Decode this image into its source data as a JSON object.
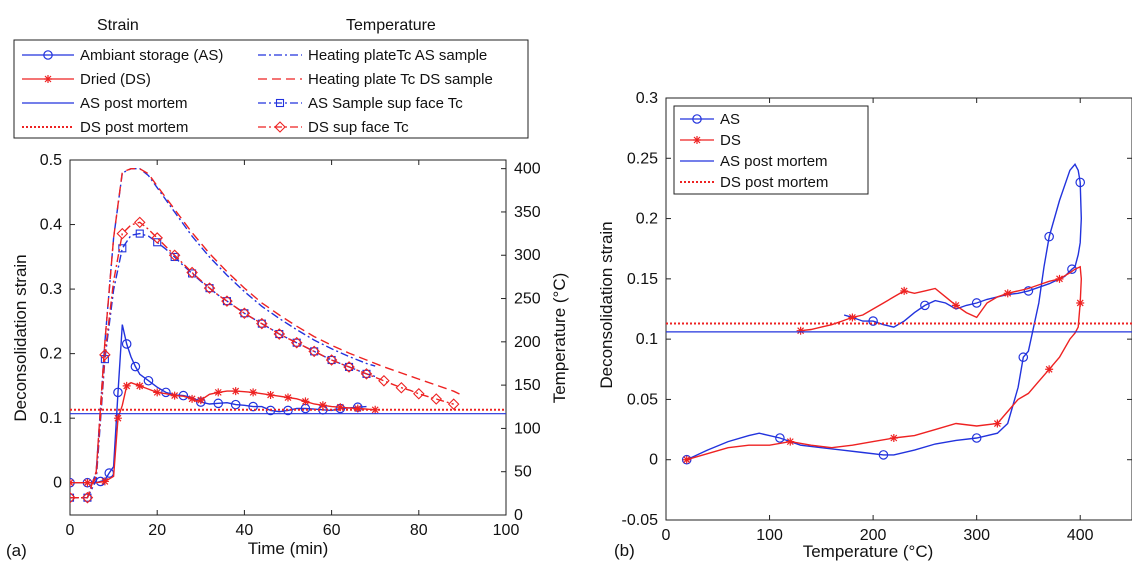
{
  "chart_data": [
    {
      "panel": "(a)",
      "type": "line",
      "header_left": "Strain",
      "header_right": "Temperature",
      "xlabel": "Time (min)",
      "ylabel": "Deconsolidation strain",
      "y2label": "Temperature (°C)",
      "xlim": [
        0,
        100
      ],
      "ylim": [
        -0.05,
        0.5
      ],
      "y2lim": [
        0,
        410
      ],
      "xticks": [
        0,
        20,
        40,
        60,
        80,
        100
      ],
      "yticks": [
        0,
        0.1,
        0.2,
        0.3,
        0.4,
        0.5
      ],
      "y2ticks": [
        0,
        50,
        100,
        150,
        200,
        250,
        300,
        350,
        400
      ],
      "legend_placement": "above",
      "series": [
        {
          "name": "Ambiant storage (AS)",
          "color": "#2233dd",
          "style": "solid",
          "marker": "circle",
          "axis": "left",
          "x": [
            0,
            2,
            4,
            6,
            7,
            8,
            9,
            10,
            11,
            12,
            13,
            14,
            15,
            16,
            18,
            20,
            22,
            24,
            26,
            28,
            30,
            32,
            34,
            36,
            38,
            40,
            42,
            44,
            46,
            48,
            50,
            52,
            54,
            56,
            58,
            60,
            62,
            64,
            66,
            68
          ],
          "y": [
            0,
            0,
            0,
            0,
            0.002,
            0.004,
            0.015,
            0.025,
            0.14,
            0.245,
            0.215,
            0.195,
            0.18,
            0.168,
            0.158,
            0.148,
            0.14,
            0.136,
            0.135,
            0.132,
            0.125,
            0.122,
            0.123,
            0.124,
            0.121,
            0.12,
            0.118,
            0.118,
            0.112,
            0.11,
            0.112,
            0.115,
            0.115,
            0.114,
            0.113,
            0.112,
            0.115,
            0.116,
            0.117,
            0.118
          ]
        },
        {
          "name": "Dried (DS)",
          "color": "#ee2222",
          "style": "solid",
          "marker": "star",
          "axis": "left",
          "x": [
            0,
            2,
            4,
            6,
            8,
            10,
            11,
            12,
            13,
            14,
            16,
            18,
            20,
            22,
            24,
            26,
            28,
            29,
            30,
            32,
            34,
            36,
            38,
            40,
            42,
            44,
            46,
            48,
            50,
            52,
            54,
            56,
            58,
            60,
            62,
            64,
            66,
            68,
            70
          ],
          "y": [
            0,
            0,
            0,
            0,
            0.002,
            0.01,
            0.1,
            0.12,
            0.15,
            0.155,
            0.15,
            0.145,
            0.14,
            0.138,
            0.135,
            0.134,
            0.13,
            0.126,
            0.128,
            0.137,
            0.14,
            0.142,
            0.142,
            0.141,
            0.14,
            0.138,
            0.136,
            0.134,
            0.132,
            0.13,
            0.126,
            0.122,
            0.12,
            0.118,
            0.117,
            0.116,
            0.115,
            0.114,
            0.113
          ]
        },
        {
          "name": "AS post mortem",
          "color": "#2233dd",
          "style": "solid",
          "marker": "none",
          "axis": "left",
          "hline": 0.107
        },
        {
          "name": "DS post mortem",
          "color": "#ee2222",
          "style": "dotted",
          "marker": "none",
          "axis": "left",
          "hline": 0.113
        },
        {
          "name": "Heating plateTc AS sample",
          "color": "#2233dd",
          "style": "dashdot",
          "marker": "none",
          "axis": "right",
          "x": [
            0,
            4,
            6,
            8,
            10,
            12,
            14,
            16,
            18,
            20,
            24,
            28,
            32,
            36,
            40,
            44,
            48,
            52,
            56,
            60,
            64,
            68,
            70
          ],
          "y": [
            20,
            20,
            50,
            200,
            320,
            395,
            400,
            400,
            392,
            378,
            350,
            322,
            298,
            277,
            258,
            241,
            227,
            214,
            202,
            192,
            183,
            175,
            172
          ]
        },
        {
          "name": "Heating plate Tc DS sample",
          "color": "#ee2222",
          "style": "dashed",
          "marker": "none",
          "axis": "right",
          "x": [
            0,
            4,
            6,
            8,
            10,
            12,
            14,
            16,
            18,
            20,
            24,
            28,
            32,
            36,
            40,
            44,
            48,
            52,
            56,
            60,
            64,
            68,
            72,
            76,
            80,
            84,
            88,
            90
          ],
          "y": [
            20,
            20,
            50,
            200,
            320,
            396,
            400,
            400,
            394,
            380,
            353,
            326,
            302,
            281,
            262,
            245,
            231,
            218,
            206,
            196,
            187,
            179,
            171,
            164,
            157,
            150,
            143,
            138
          ]
        },
        {
          "name": "AS Sample sup face Tc",
          "color": "#2233dd",
          "style": "dashdot",
          "marker": "square",
          "axis": "right",
          "x": [
            0,
            2,
            4,
            6,
            8,
            10,
            12,
            14,
            16,
            18,
            20,
            22,
            24,
            26,
            28,
            30,
            32,
            34,
            36,
            38,
            40,
            42,
            44,
            46,
            48,
            50,
            52,
            54,
            56,
            58,
            60,
            62,
            64,
            66,
            68,
            70
          ],
          "y": [
            20,
            20,
            20,
            40,
            180,
            260,
            308,
            323,
            325,
            322,
            315,
            307,
            298,
            288,
            279,
            270,
            262,
            254,
            247,
            240,
            233,
            227,
            221,
            215,
            209,
            204,
            199,
            194,
            189,
            184,
            179,
            175,
            171,
            167,
            163,
            160
          ]
        },
        {
          "name": "DS sup face Tc",
          "color": "#ee2222",
          "style": "dashdot",
          "marker": "diamond",
          "axis": "right",
          "x": [
            0,
            2,
            4,
            6,
            8,
            10,
            12,
            14,
            16,
            18,
            20,
            22,
            24,
            26,
            28,
            30,
            32,
            34,
            36,
            38,
            40,
            42,
            44,
            46,
            48,
            50,
            52,
            54,
            56,
            58,
            60,
            62,
            64,
            66,
            68,
            70,
            72,
            74,
            76,
            78,
            80,
            82,
            84,
            86,
            88
          ],
          "y": [
            20,
            20,
            20,
            45,
            185,
            270,
            325,
            335,
            338,
            330,
            320,
            310,
            300,
            290,
            280,
            271,
            262,
            254,
            247,
            240,
            233,
            227,
            221,
            215,
            209,
            204,
            199,
            194,
            189,
            184,
            179,
            175,
            171,
            167,
            163,
            159,
            155,
            151,
            147,
            144,
            140,
            137,
            134,
            131,
            128
          ]
        }
      ]
    },
    {
      "panel": "(b)",
      "type": "line",
      "xlabel": "Temperature (°C)",
      "ylabel": "Deconsolidation strain",
      "xlim": [
        0,
        450
      ],
      "ylim": [
        -0.05,
        0.3
      ],
      "xticks": [
        0,
        100,
        200,
        300,
        400
      ],
      "yticks": [
        -0.05,
        0,
        0.05,
        0.1,
        0.15,
        0.2,
        0.25,
        0.3
      ],
      "legend_placement": "top-left",
      "series": [
        {
          "name": "AS",
          "color": "#2233dd",
          "style": "solid",
          "marker": "circle",
          "x": [
            20,
            40,
            60,
            80,
            90,
            110,
            130,
            150,
            170,
            190,
            210,
            220,
            240,
            260,
            280,
            300,
            320,
            330,
            335,
            340,
            345,
            350,
            355,
            360,
            365,
            370,
            380,
            390,
            395,
            398,
            400,
            401,
            400,
            398,
            395,
            392,
            385,
            380,
            370,
            360,
            350,
            340,
            330,
            320,
            310,
            300,
            290,
            280,
            270,
            260,
            250,
            240,
            230,
            220,
            210,
            200,
            190,
            180,
            172
          ],
          "y": [
            0,
            0.008,
            0.015,
            0.02,
            0.022,
            0.018,
            0.012,
            0.01,
            0.008,
            0.006,
            0.004,
            0.004,
            0.008,
            0.013,
            0.016,
            0.018,
            0.022,
            0.03,
            0.045,
            0.06,
            0.085,
            0.09,
            0.11,
            0.13,
            0.16,
            0.185,
            0.215,
            0.24,
            0.245,
            0.24,
            0.23,
            0.2,
            0.18,
            0.17,
            0.16,
            0.158,
            0.152,
            0.15,
            0.146,
            0.143,
            0.14,
            0.138,
            0.137,
            0.135,
            0.133,
            0.13,
            0.128,
            0.125,
            0.13,
            0.132,
            0.128,
            0.122,
            0.115,
            0.11,
            0.112,
            0.115,
            0.115,
            0.118,
            0.12
          ]
        },
        {
          "name": "DS",
          "color": "#ee2222",
          "style": "solid",
          "marker": "star",
          "x": [
            20,
            40,
            60,
            80,
            100,
            120,
            140,
            160,
            180,
            200,
            220,
            240,
            260,
            280,
            300,
            320,
            330,
            340,
            350,
            360,
            370,
            380,
            390,
            395,
            398,
            400,
            401,
            400,
            395,
            390,
            380,
            370,
            360,
            350,
            340,
            330,
            320,
            310,
            300,
            290,
            280,
            270,
            260,
            250,
            240,
            230,
            220,
            210,
            200,
            190,
            180,
            170,
            160,
            150,
            140,
            130
          ],
          "y": [
            0,
            0.005,
            0.01,
            0.012,
            0.012,
            0.015,
            0.012,
            0.01,
            0.012,
            0.015,
            0.018,
            0.02,
            0.025,
            0.03,
            0.028,
            0.03,
            0.04,
            0.05,
            0.055,
            0.065,
            0.075,
            0.085,
            0.1,
            0.105,
            0.11,
            0.13,
            0.15,
            0.16,
            0.158,
            0.155,
            0.15,
            0.148,
            0.145,
            0.142,
            0.14,
            0.138,
            0.135,
            0.13,
            0.118,
            0.122,
            0.128,
            0.135,
            0.142,
            0.14,
            0.138,
            0.14,
            0.135,
            0.13,
            0.125,
            0.12,
            0.118,
            0.115,
            0.112,
            0.11,
            0.108,
            0.107
          ]
        },
        {
          "name": "AS post mortem",
          "color": "#2233dd",
          "style": "solid",
          "marker": "none",
          "hline": 0.106
        },
        {
          "name": "DS post mortem",
          "color": "#ee2222",
          "style": "dotted",
          "marker": "none",
          "hline": 0.113
        }
      ]
    }
  ]
}
